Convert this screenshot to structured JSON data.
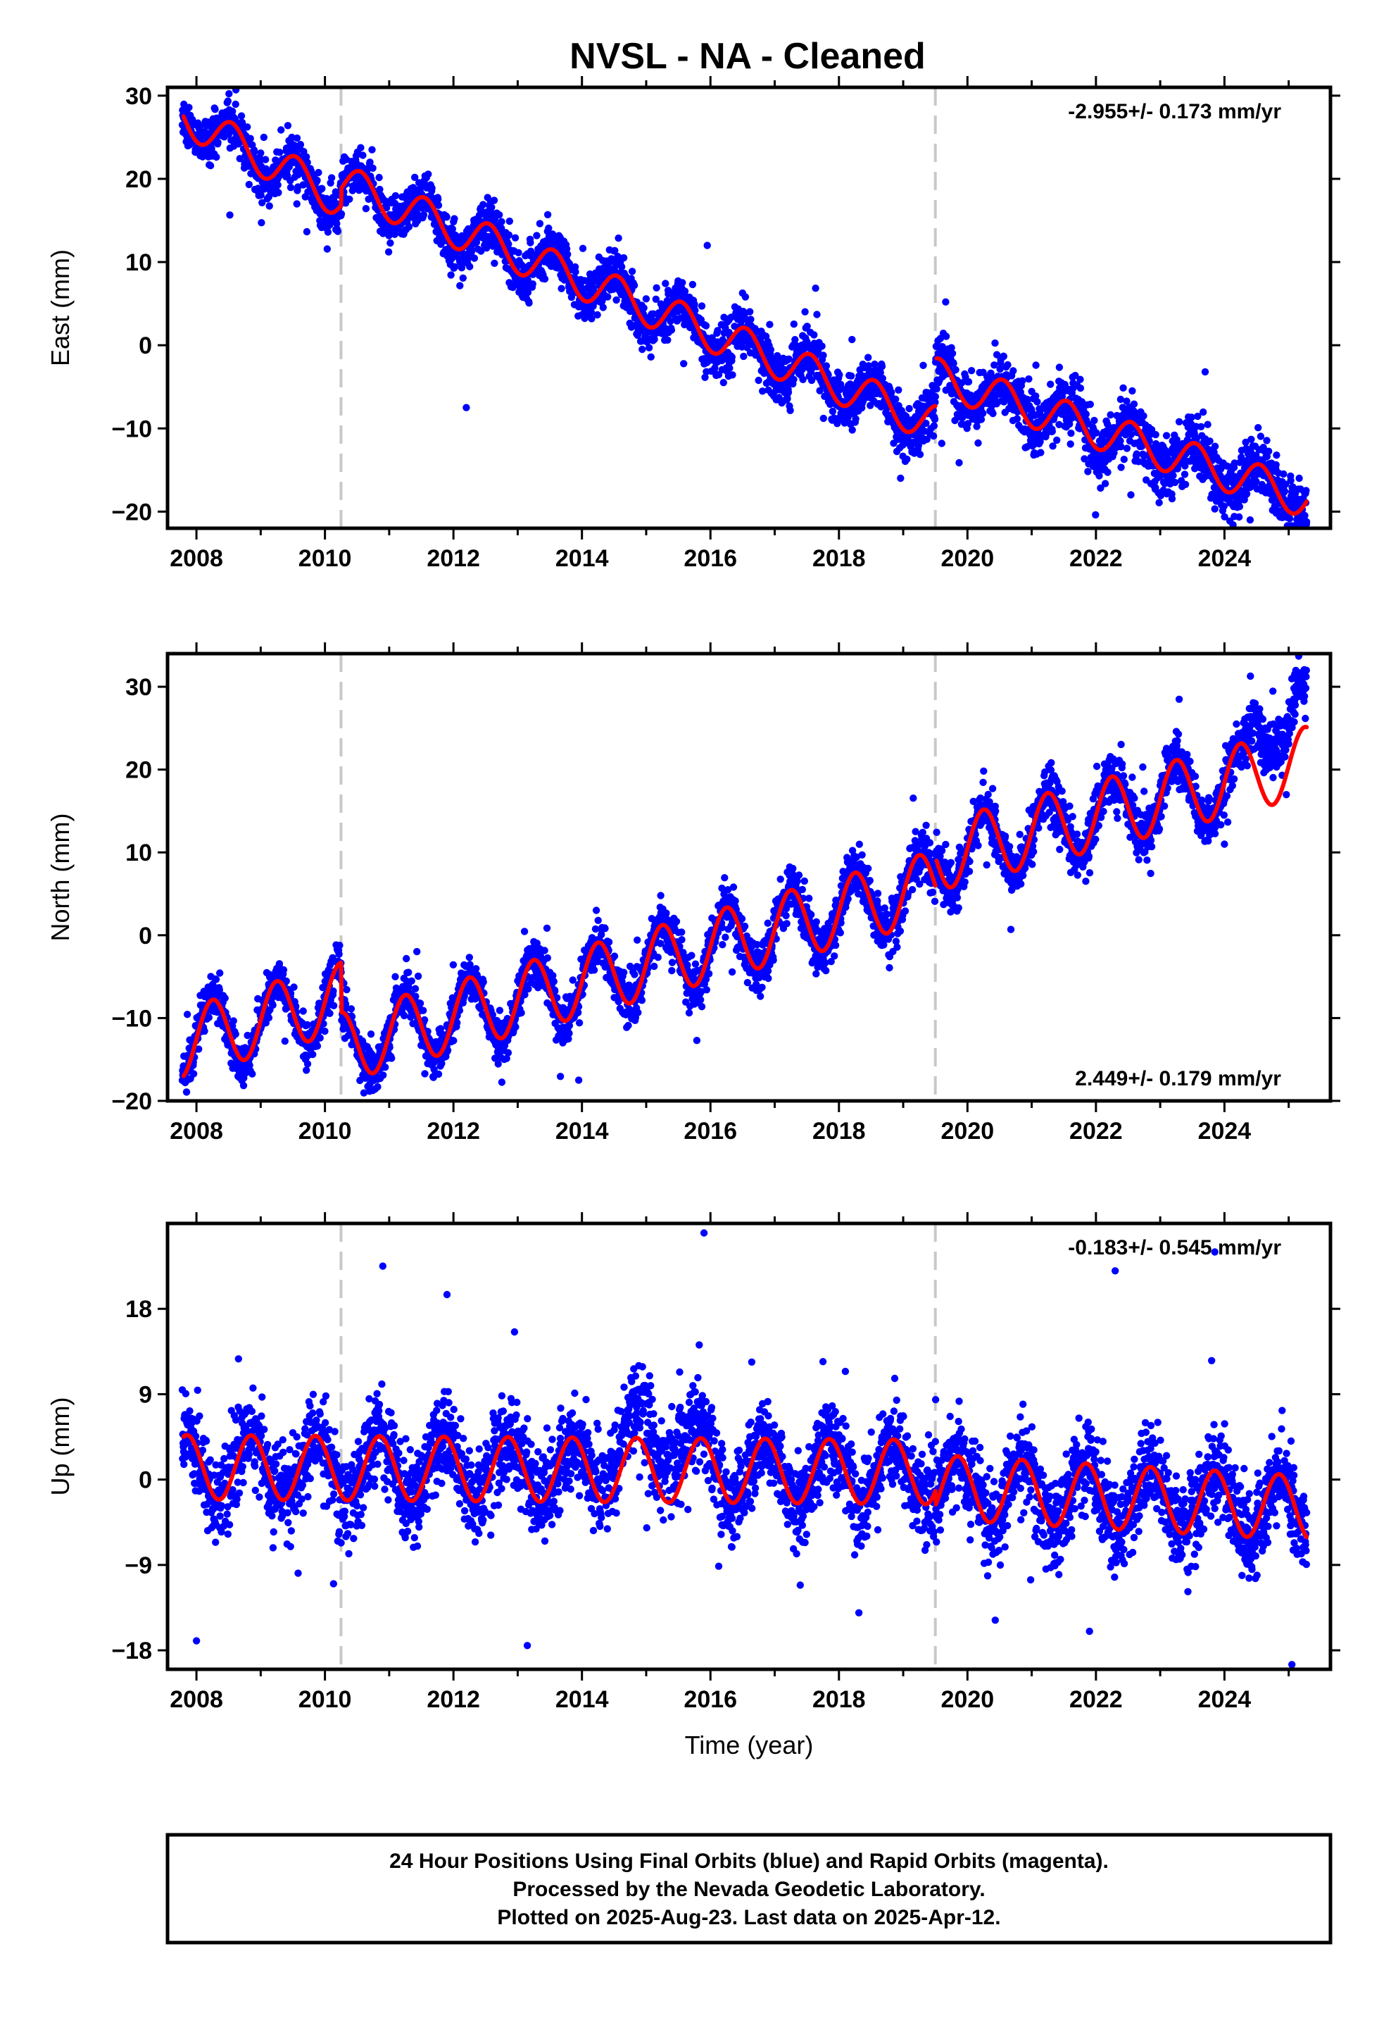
{
  "title": "NVSL  - NA - Cleaned",
  "chart_data": [
    {
      "type": "scatter",
      "ylabel": "East (mm)",
      "xlabel": "",
      "xlim": [
        2007.55,
        2025.65
      ],
      "ylim": [
        -22,
        31
      ],
      "xticks": [
        2008,
        2010,
        2012,
        2014,
        2016,
        2018,
        2020,
        2022,
        2024
      ],
      "xtick_labels": [
        "2008",
        "2010",
        "2012",
        "2014",
        "2016",
        "2018",
        "2020",
        "2022",
        "2024"
      ],
      "yticks": [
        -20,
        -10,
        0,
        10,
        20,
        30
      ],
      "ytick_labels": [
        "−20",
        "−10",
        "0",
        "10",
        "20",
        "30"
      ],
      "rate_label": "-2.955+/- 0.173 mm/yr",
      "rate_position": "top-right",
      "equipment_changes": [
        2010.25,
        2019.5
      ],
      "series": [
        {
          "kind": "scatter",
          "color": "#0000ff",
          "data_range": [
            2007.78,
            2025.28
          ],
          "scatter_amplitude": 1.6,
          "spread_start": 2.8,
          "spread_end": 4.0
        },
        {
          "kind": "model",
          "color": "#ff0000",
          "knots": [
            [
              2007.8,
              27.5
            ],
            [
              2010.25,
              17.5
            ],
            [
              2010.26,
              19.5
            ],
            [
              2019.5,
              -9.5
            ],
            [
              2019.51,
              -3.8
            ],
            [
              2025.28,
              -18.5
            ]
          ],
          "annual_amplitude": 2.3,
          "annual_phase": 0.55
        }
      ],
      "outliers": [
        [
          2015.95,
          12.0
        ],
        [
          2023.7,
          -3.2
        ],
        [
          2012.2,
          -7.5
        ],
        [
          2017.2,
          -4.0
        ],
        [
          2024.4,
          -21.0
        ],
        [
          2019.6,
          -11.8
        ]
      ]
    },
    {
      "type": "scatter",
      "ylabel": "North (mm)",
      "xlabel": "",
      "xlim": [
        2007.55,
        2025.65
      ],
      "ylim": [
        -20,
        34
      ],
      "xticks": [
        2008,
        2010,
        2012,
        2014,
        2016,
        2018,
        2020,
        2022,
        2024
      ],
      "xtick_labels": [
        "2008",
        "2010",
        "2012",
        "2014",
        "2016",
        "2018",
        "2020",
        "2022",
        "2024"
      ],
      "yticks": [
        -20,
        -10,
        0,
        10,
        20,
        30
      ],
      "ytick_labels": [
        "−20",
        "−10",
        "0",
        "10",
        "20",
        "30"
      ],
      "rate_label": "2.449+/- 0.179 mm/yr",
      "rate_position": "bottom-right",
      "equipment_changes": [
        2010.25,
        2019.5
      ],
      "series": [
        {
          "kind": "scatter",
          "color": "#0000ff",
          "data_range": [
            2007.78,
            2025.28
          ],
          "scatter_amplitude": 1.6,
          "spread_start": 2.8,
          "spread_end": 3.6,
          "offset_after": [
            [
              2024.3,
              0.0
            ],
            [
              2024.5,
              6.5
            ],
            [
              2025.28,
              5.5
            ]
          ]
        },
        {
          "kind": "model",
          "color": "#ff0000",
          "knots": [
            [
              2007.8,
              -13.0
            ],
            [
              2010.25,
              -7.5
            ],
            [
              2010.26,
              -13.5
            ],
            [
              2019.5,
              6.0
            ],
            [
              2019.51,
              9.5
            ],
            [
              2025.28,
              21.0
            ]
          ],
          "annual_amplitude": 4.2,
          "annual_phase": 0.25
        }
      ],
      "outliers": [
        [
          2013.95,
          -17.5
        ],
        [
          2020.3,
          8.5
        ],
        [
          2024.0,
          11.0
        ],
        [
          2011.6,
          -15.5
        ],
        [
          2016.9,
          -5.2
        ]
      ]
    },
    {
      "type": "scatter",
      "ylabel": "Up (mm)",
      "xlabel": "Time (year)",
      "xlim": [
        2007.55,
        2025.65
      ],
      "ylim": [
        -20,
        27
      ],
      "xticks": [
        2008,
        2010,
        2012,
        2014,
        2016,
        2018,
        2020,
        2022,
        2024
      ],
      "xtick_labels": [
        "2008",
        "2010",
        "2012",
        "2014",
        "2016",
        "2018",
        "2020",
        "2022",
        "2024"
      ],
      "yticks": [
        -18,
        -9,
        0,
        9,
        18
      ],
      "ytick_labels": [
        "−18",
        "−9",
        "0",
        "9",
        "18"
      ],
      "rate_label": "-0.183+/- 0.545 mm/yr",
      "rate_position": "top-right",
      "equipment_changes": [
        2010.25,
        2019.5
      ],
      "series": [
        {
          "kind": "scatter",
          "color": "#0000ff",
          "data_range": [
            2007.78,
            2025.28
          ],
          "scatter_amplitude": 4.0,
          "spread_start": 5.0,
          "spread_end": 5.0,
          "bump": [
            2014.0,
            2016.2,
            8.0
          ]
        },
        {
          "kind": "model",
          "color": "#ff0000",
          "knots": [
            [
              2007.8,
              1.3
            ],
            [
              2019.5,
              0.8
            ],
            [
              2019.51,
              -0.8
            ],
            [
              2025.28,
              -3.0
            ]
          ],
          "annual_amplitude": 3.4,
          "annual_phase": 0.85
        }
      ],
      "outliers": [
        [
          2015.9,
          26.0
        ],
        [
          2010.9,
          22.5
        ],
        [
          2022.3,
          22.0
        ],
        [
          2023.85,
          24.0
        ],
        [
          2011.9,
          19.5
        ],
        [
          2013.15,
          -17.5
        ],
        [
          2025.05,
          -19.5
        ],
        [
          2008.0,
          -17.0
        ],
        [
          2021.9,
          -16.0
        ]
      ]
    }
  ],
  "footer": {
    "line1": "24 Hour Positions Using Final Orbits (blue) and Rapid Orbits (magenta).",
    "line2": "Processed by the Nevada Geodetic Laboratory.",
    "line3": "Plotted on 2025-Aug-23. Last data on 2025-Apr-12."
  }
}
